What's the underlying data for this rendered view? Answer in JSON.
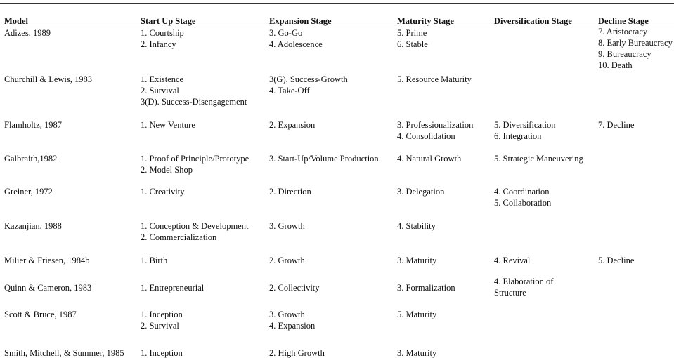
{
  "table": {
    "header": [
      "Model",
      "Start Up Stage",
      "Expansion Stage",
      "Maturity Stage",
      "Diversification Stage",
      "Decline Stage"
    ],
    "rows": [
      [
        "Adizes, 1989",
        [
          "1. Courtship",
          "2. Infancy"
        ],
        [
          "3. Go-Go",
          "4. Adolescence"
        ],
        [
          "5. Prime",
          "6. Stable"
        ],
        [],
        [
          "7. Aristocracy",
          "8. Early Bureaucracy",
          "9. Bureaucracy",
          "10. Death"
        ]
      ],
      [
        "Churchill & Lewis, 1983",
        [
          "1. Existence",
          "2. Survival",
          "3(D). Success-Disengagement"
        ],
        [
          "3(G). Success-Growth",
          "4. Take-Off"
        ],
        [
          "5. Resource Maturity"
        ],
        [],
        []
      ],
      [
        "Flamholtz, 1987",
        [
          "1. New Venture"
        ],
        [
          "2. Expansion"
        ],
        [
          "3. Professionalization",
          "4. Consolidation"
        ],
        [
          "5. Diversification",
          "6. Integration"
        ],
        [
          "7. Decline"
        ]
      ],
      [
        "Galbraith,1982",
        [
          "1. Proof of Principle/Prototype",
          "2. Model Shop"
        ],
        [
          "3. Start-Up/Volume Production"
        ],
        [
          "4. Natural Growth"
        ],
        [
          "5. Strategic Maneuvering"
        ],
        []
      ],
      [
        "Greiner, 1972",
        [
          "1. Creativity"
        ],
        [
          "2. Direction"
        ],
        [
          "3. Delegation"
        ],
        [
          "4. Coordination",
          "5. Collaboration"
        ],
        []
      ],
      [
        "Kazanjian, 1988",
        [
          "1. Conception & Development",
          "2. Commercialization"
        ],
        [
          "3. Growth"
        ],
        [
          "4. Stability"
        ],
        [],
        []
      ],
      [
        "Milier & Friesen, 1984b",
        [
          "1. Birth"
        ],
        [
          "2. Growth"
        ],
        [
          "3. Maturity"
        ],
        [
          "4. Revival"
        ],
        [
          "5. Decline"
        ]
      ],
      [
        "Quinn & Cameron, 1983",
        [
          "1. Entrepreneurial"
        ],
        [
          "2. Collectivity"
        ],
        [
          "3. Formalization"
        ],
        [
          "4. Elaboration of",
          "Structure"
        ],
        []
      ],
      [
        "Scott & Bruce, 1987",
        [
          "1. Inception",
          "2. Survival"
        ],
        [
          "3. Growth",
          "4. Expansion"
        ],
        [
          "5. Maturity"
        ],
        [],
        []
      ],
      [
        "Smith, Mitchell, & Summer, 1985",
        [
          "1. Inception"
        ],
        [
          "2. High Growth"
        ],
        [
          "3. Maturity"
        ],
        [],
        []
      ]
    ]
  }
}
